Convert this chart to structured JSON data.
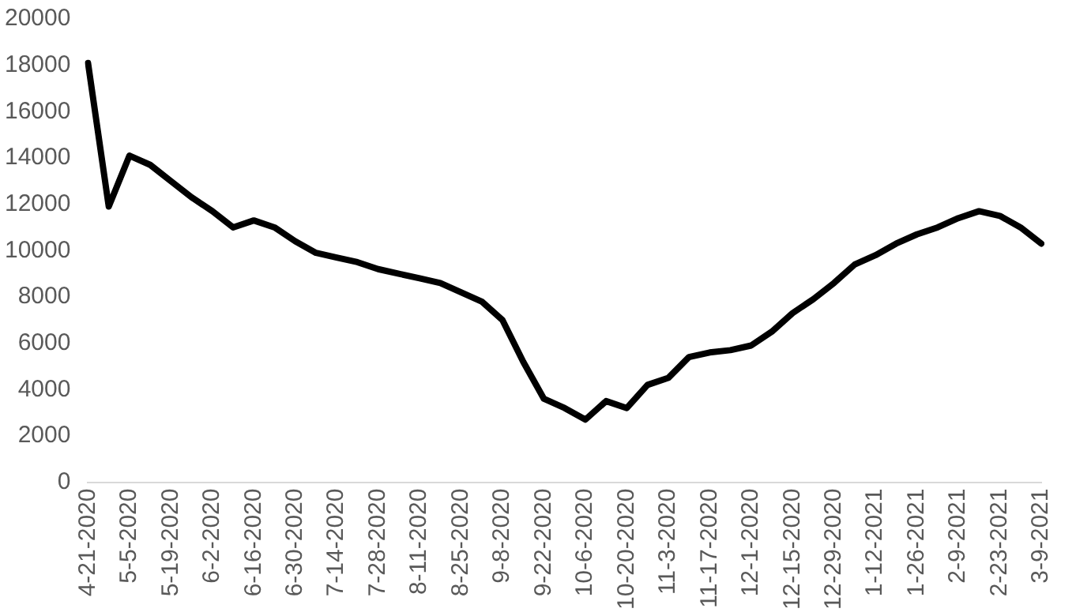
{
  "chart_data": {
    "type": "line",
    "categories": [
      "4-21-2020",
      null,
      "5-5-2020",
      null,
      "5-19-2020",
      null,
      "6-2-2020",
      null,
      "6-16-2020",
      null,
      "6-30-2020",
      null,
      "7-14-2020",
      null,
      "7-28-2020",
      null,
      "8-11-2020",
      null,
      "8-25-2020",
      null,
      "9-8-2020",
      null,
      "9-22-2020",
      null,
      "10-6-2020",
      null,
      "10-20-2020",
      null,
      "11-3-2020",
      null,
      "11-17-2020",
      null,
      "12-1-2020",
      null,
      "12-15-2020",
      null,
      "12-29-2020",
      null,
      "1-12-2021",
      null,
      "1-26-2021",
      null,
      "2-9-2021",
      null,
      "2-23-2021",
      null,
      "3-9-2021"
    ],
    "series": [
      {
        "color": "#000000",
        "values": [
          18100,
          11900,
          14100,
          13700,
          13000,
          12300,
          11700,
          11000,
          11300,
          11000,
          10400,
          9900,
          9700,
          9500,
          9200,
          9000,
          8800,
          8600,
          8200,
          7800,
          7000,
          5200,
          3600,
          3200,
          2700,
          3500,
          3200,
          4200,
          4500,
          5400,
          5600,
          5700,
          5900,
          6500,
          7300,
          7900,
          8600,
          9400,
          9800,
          10300,
          10700,
          11000,
          11400,
          11700,
          11500,
          11000,
          10300
        ]
      }
    ],
    "ylim": [
      0,
      20000
    ],
    "yticks": [
      0,
      2000,
      4000,
      6000,
      8000,
      10000,
      12000,
      14000,
      16000,
      18000,
      20000
    ],
    "grid": false,
    "legend": false,
    "marker": "none",
    "line_style": "solid"
  }
}
